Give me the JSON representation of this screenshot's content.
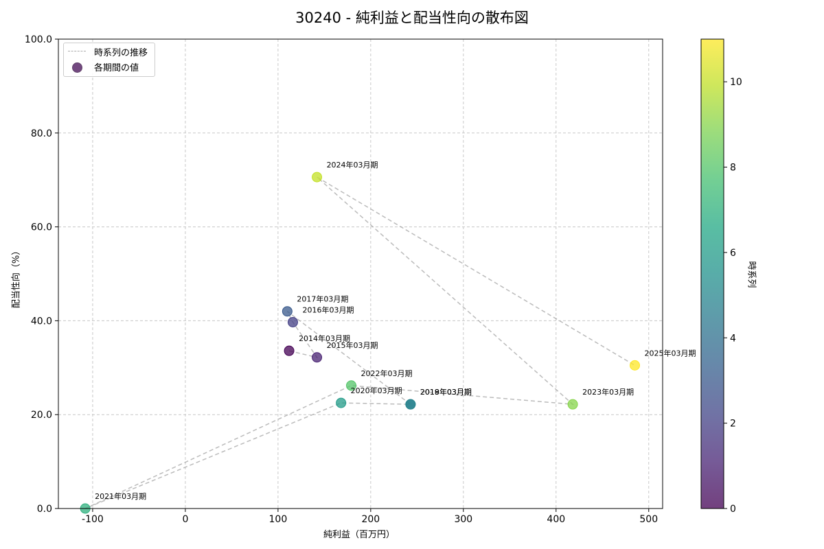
{
  "chart_data": {
    "type": "scatter",
    "title": "30240 - 純利益と配当性向の散布図",
    "xlabel": "純利益（百万円）",
    "ylabel": "配当性向（%）",
    "colorbar_label": "時系列",
    "xlim": [
      -137,
      515
    ],
    "ylim": [
      0,
      100
    ],
    "xticks": [
      -100,
      0,
      100,
      200,
      300,
      400,
      500
    ],
    "yticks": [
      0.0,
      20.0,
      40.0,
      60.0,
      80.0,
      100.0
    ],
    "colorbar_ticks": [
      0,
      2,
      4,
      6,
      8,
      10
    ],
    "colorbar_range": [
      0,
      11
    ],
    "grid": true,
    "legend": {
      "position": "top-left",
      "line_label": "時系列の推移",
      "point_label": "各期間の値"
    },
    "points": [
      {
        "label": "2014年03月期",
        "x": 112,
        "y": 33.6,
        "t": 0
      },
      {
        "label": "2015年03月期",
        "x": 142,
        "y": 32.2,
        "t": 1
      },
      {
        "label": "2016年03月期",
        "x": 116,
        "y": 39.7,
        "t": 2
      },
      {
        "label": "2017年03月期",
        "x": 110,
        "y": 42.0,
        "t": 3
      },
      {
        "label": "2018年03月期",
        "x": 243,
        "y": 22.2,
        "t": 4
      },
      {
        "label": "2019年03月期",
        "x": 243,
        "y": 22.2,
        "t": 5
      },
      {
        "label": "2020年03月期",
        "x": 168,
        "y": 22.5,
        "t": 6
      },
      {
        "label": "2021年03月期",
        "x": -108,
        "y": 0.0,
        "t": 7
      },
      {
        "label": "2022年03月期",
        "x": 179,
        "y": 26.2,
        "t": 8
      },
      {
        "label": "2023年03月期",
        "x": 418,
        "y": 22.2,
        "t": 9
      },
      {
        "label": "2024年03月期",
        "x": 142,
        "y": 70.6,
        "t": 10
      },
      {
        "label": "2025年03月期",
        "x": 485,
        "y": 30.5,
        "t": 11
      }
    ]
  }
}
